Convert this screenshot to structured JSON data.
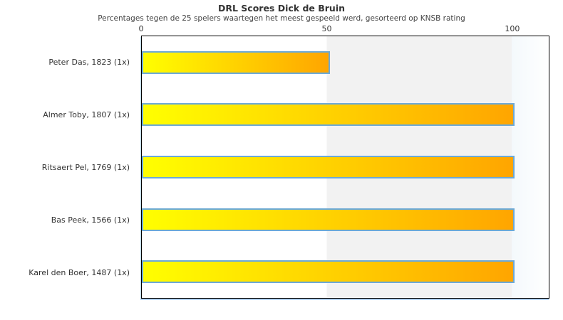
{
  "chart_data": {
    "type": "bar",
    "orientation": "horizontal",
    "title": "DRL Scores Dick de Bruin",
    "subtitle": "Percentages tegen de 25 spelers waartegen het meest gespeeld werd, gesorteerd op KNSB rating",
    "categories": [
      "Peter Das, 1823 (1x)",
      "Almer Toby, 1807 (1x)",
      "Ritsaert Pel, 1769 (1x)",
      "Bas Peek, 1566 (1x)",
      "Karel den Boer, 1487 (1x)"
    ],
    "values": [
      50,
      100,
      100,
      100,
      100
    ],
    "xlabel": "",
    "ylabel": "",
    "xlim": [
      0,
      110
    ],
    "x_ticks": [
      0,
      50,
      100
    ],
    "grid": "banded-background",
    "legend": "none",
    "bar_gradient": [
      "#ffff00",
      "#ffa500"
    ],
    "bar_border_color": "#6ca9d6",
    "band_colors": {
      "low": "#ffffff",
      "mid": "#f2f2f2",
      "overflow": "#f4f9fc"
    },
    "plot_border_color": "#000000",
    "text_color": "#333333"
  }
}
